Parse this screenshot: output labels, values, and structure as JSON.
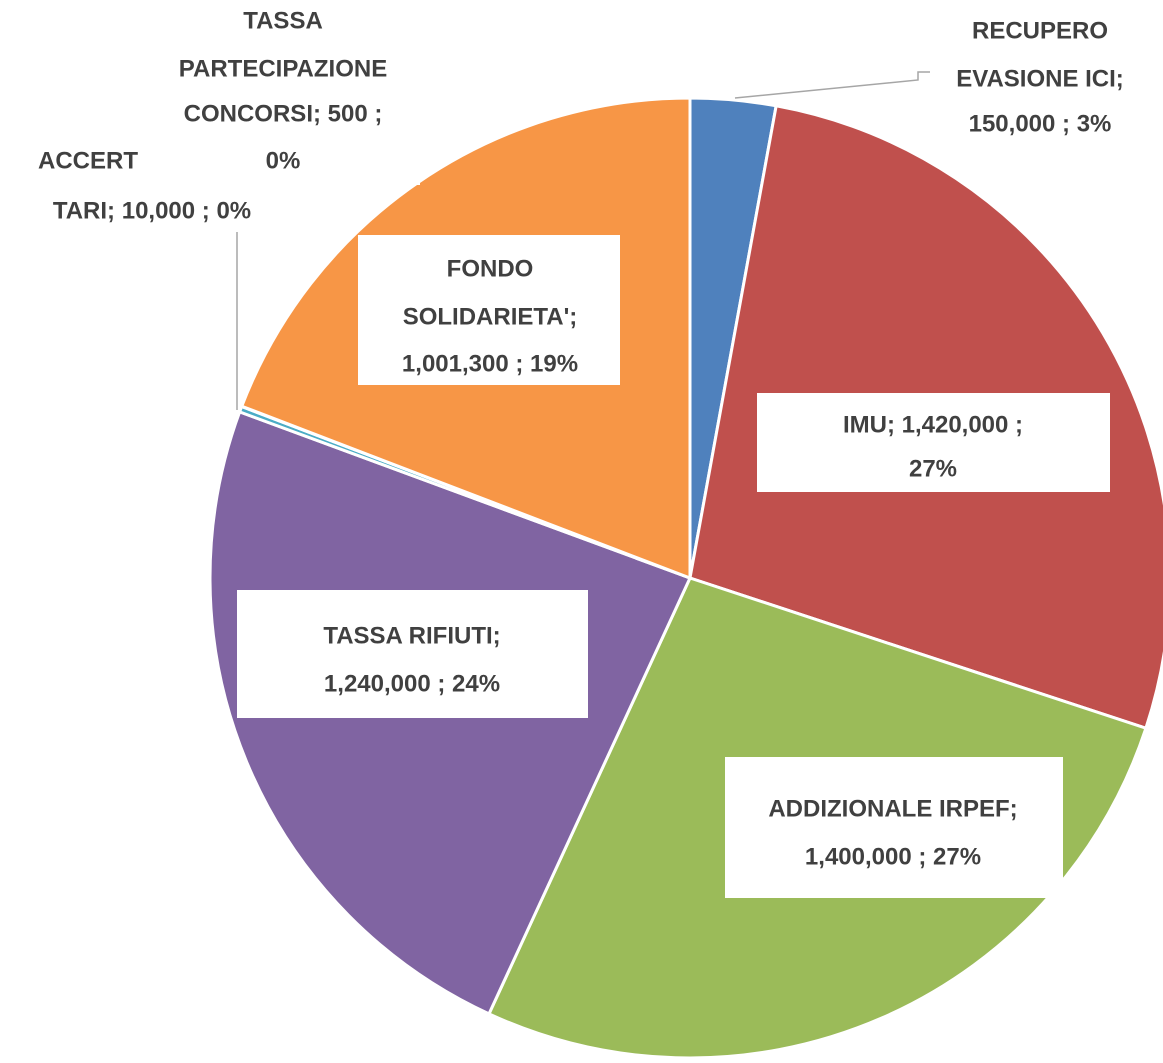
{
  "chart_data": {
    "type": "pie",
    "values": [
      150000,
      1420000,
      1400000,
      1240000,
      10000,
      500,
      1001300
    ],
    "value_labels": [
      [
        "RECUPERO",
        "EVASIONE ICI;",
        "150,000 ; 3%"
      ],
      [
        "IMU;  1,420,000 ;",
        "27%"
      ],
      [
        "ADDIZIONALE IRPEF;",
        "1,400,000 ; 27%"
      ],
      [
        "TASSA RIFIUTI;",
        "1,240,000 ; 24%"
      ],
      [
        "ACCERT",
        "TARI;  10,000 ; 0%"
      ],
      [
        "TASSA",
        "PARTECIPAZIONE",
        "CONCORSI;  500 ;",
        "0%"
      ],
      [
        "FONDO",
        "SOLIDARIETA';",
        "1,001,300 ; 19%"
      ]
    ],
    "colors": [
      "#4f81bd",
      "#c0504d",
      "#9bbb59",
      "#8064a2",
      "#4bacc6",
      "#1f497d",
      "#f79646"
    ]
  }
}
